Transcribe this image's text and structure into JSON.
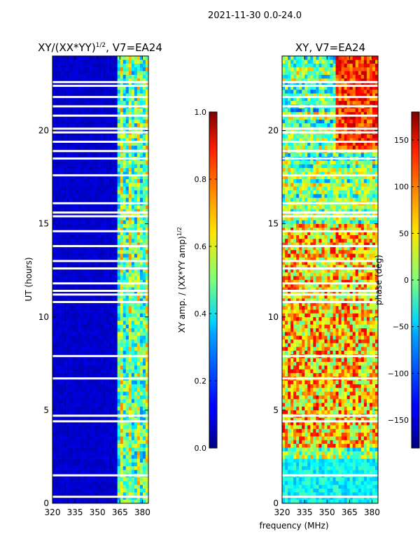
{
  "figure_title": "2021-11-30 0.0-24.0",
  "chart_data": [
    {
      "type": "heatmap",
      "title_text": "XY/(XX*YY)",
      "title_exponent": "1/2",
      "title_suffix": ", V7=EA24",
      "xlabel": "",
      "ylabel": "UT (hours)",
      "x_ticks": [
        "320",
        "335",
        "350",
        "365",
        "380"
      ],
      "x_tick_values": [
        320,
        335,
        350,
        365,
        380
      ],
      "xlim": [
        320,
        384
      ],
      "y_ticks": [
        "0",
        "5",
        "10",
        "15",
        "20"
      ],
      "y_tick_values": [
        0,
        5,
        10,
        15,
        20
      ],
      "ylim": [
        0,
        24
      ],
      "colorbar": {
        "label": "XY amp. / (XX*YY amp)",
        "label_exponent": "1/2",
        "range": [
          0,
          1
        ],
        "ticks": [
          "0.0",
          "0.2",
          "0.4",
          "0.6",
          "0.8",
          "1.0"
        ],
        "tick_values": [
          0.0,
          0.2,
          0.4,
          0.6,
          0.8,
          1.0
        ]
      },
      "colormap": "jet",
      "blank_rows_ut_hours": [
        0.35,
        1.5,
        4.4,
        4.7,
        6.7,
        7.9,
        10.8,
        11.2,
        11.4,
        11.8,
        12.6,
        13.0,
        13.8,
        14.6,
        15.4,
        15.6,
        16.1,
        17.6,
        18.5,
        18.9,
        19.4,
        19.9,
        20.1,
        20.8,
        21.3,
        21.8,
        22.4,
        22.6
      ]
    },
    {
      "type": "heatmap",
      "title_text": "XY, V7=EA24",
      "xlabel": "frequency (MHz)",
      "ylabel": "",
      "x_ticks": [
        "320",
        "335",
        "350",
        "365",
        "380"
      ],
      "x_tick_values": [
        320,
        335,
        350,
        365,
        380
      ],
      "xlim": [
        320,
        384
      ],
      "y_ticks": [
        "0",
        "5",
        "10",
        "15",
        "20"
      ],
      "y_tick_values": [
        0,
        5,
        10,
        15,
        20
      ],
      "ylim": [
        0,
        24
      ],
      "colorbar": {
        "label": "phase (deg)",
        "range": [
          -180,
          180
        ],
        "ticks": [
          "−150",
          "−100",
          "−50",
          "0",
          "50",
          "100",
          "150"
        ],
        "tick_values": [
          -150,
          -100,
          -50,
          0,
          50,
          100,
          150
        ]
      },
      "colormap": "jet",
      "blank_rows_ut_hours": [
        0.35,
        1.5,
        4.4,
        4.7,
        6.7,
        7.9,
        10.8,
        11.2,
        11.4,
        11.8,
        12.6,
        13.0,
        13.8,
        14.6,
        15.4,
        15.6,
        16.1,
        17.6,
        18.5,
        18.9,
        19.4,
        19.9,
        20.1,
        20.8,
        21.3,
        21.8,
        22.4,
        22.6
      ]
    }
  ]
}
